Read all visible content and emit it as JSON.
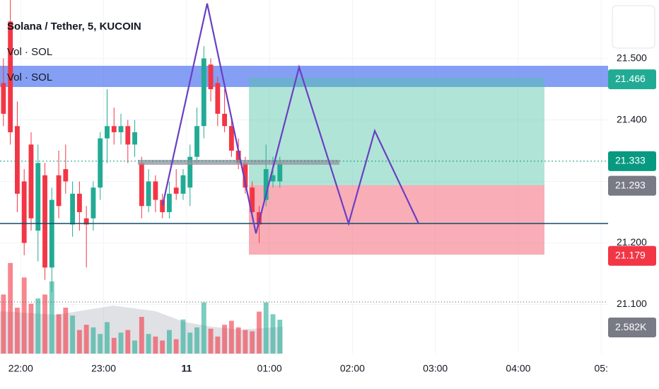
{
  "chart_data": {
    "type": "candlestick",
    "title": "Solana / Tether, 5, KUCOIN",
    "legend": [
      "Vol · SOL",
      "Vol · SOL"
    ],
    "open": [
      21.46,
      21.56,
      21.39,
      21.3,
      21.36,
      21.22,
      21.31,
      21.16,
      21.31,
      21.32,
      21.23,
      21.28,
      21.24,
      21.24,
      21.29,
      21.37,
      21.39,
      21.38,
      21.39,
      21.36,
      21.33,
      21.26,
      21.3,
      21.27,
      21.25,
      21.29,
      21.28,
      21.29,
      21.34,
      21.39,
      21.49,
      21.46,
      21.41,
      21.39,
      21.35,
      21.33,
      21.29,
      21.25,
      21.27,
      21.3,
      21.3
    ],
    "high": [
      21.5,
      21.6,
      21.43,
      21.32,
      21.38,
      21.36,
      21.33,
      21.29,
      21.35,
      21.36,
      21.3,
      21.3,
      21.26,
      21.3,
      21.38,
      21.45,
      21.42,
      21.41,
      21.4,
      21.4,
      21.34,
      21.32,
      21.31,
      21.28,
      21.3,
      21.32,
      21.32,
      21.36,
      21.42,
      21.52,
      21.5,
      21.47,
      21.45,
      21.4,
      21.37,
      21.34,
      21.3,
      21.26,
      21.36,
      21.34,
      21.34
    ],
    "low": [
      21.39,
      21.36,
      21.25,
      21.18,
      21.22,
      21.17,
      21.14,
      21.12,
      21.24,
      21.28,
      21.21,
      21.22,
      21.16,
      21.22,
      21.27,
      21.33,
      21.36,
      21.36,
      21.33,
      21.34,
      21.24,
      21.25,
      21.25,
      21.24,
      21.24,
      21.27,
      21.27,
      21.26,
      21.33,
      21.37,
      21.43,
      21.39,
      21.38,
      21.34,
      21.32,
      21.28,
      21.24,
      21.2,
      21.26,
      21.29,
      21.29
    ],
    "close": [
      21.41,
      21.38,
      21.28,
      21.2,
      21.24,
      21.33,
      21.16,
      21.27,
      21.26,
      21.3,
      21.28,
      21.25,
      21.23,
      21.29,
      21.37,
      21.39,
      21.38,
      21.39,
      21.36,
      21.38,
      21.26,
      21.3,
      21.27,
      21.25,
      21.28,
      21.28,
      21.31,
      21.34,
      21.39,
      21.5,
      21.45,
      21.41,
      21.39,
      21.35,
      21.33,
      21.29,
      21.25,
      21.23,
      21.32,
      21.31,
      21.33
    ],
    "volume": [
      4.5,
      6.9,
      3.5,
      5.8,
      3.8,
      4.2,
      4.5,
      5.5,
      3.0,
      3.5,
      2.9,
      1.8,
      2.2,
      2.0,
      1.5,
      2.4,
      1.2,
      1.6,
      1.8,
      1.0,
      2.8,
      1.5,
      1.3,
      1.0,
      1.8,
      1.1,
      2.6,
      1.6,
      2.0,
      3.9,
      1.9,
      1.3,
      2.2,
      2.5,
      2.0,
      1.8,
      1.7,
      3.2,
      3.9,
      3.0,
      2.582
    ],
    "up_color": "#22ab94",
    "down_color": "#f23645",
    "xlim": [
      -0.5,
      87.5
    ],
    "xticks": [
      {
        "value": 2.5,
        "label": "22:00"
      },
      {
        "value": 14.5,
        "label": "23:00"
      },
      {
        "value": 26.5,
        "label": "11"
      },
      {
        "value": 38.5,
        "label": "01:00"
      },
      {
        "value": 50.5,
        "label": "02:00"
      },
      {
        "value": 62.5,
        "label": "03:00"
      },
      {
        "value": 74.5,
        "label": "04:00"
      },
      {
        "value": 86.5,
        "label": "05:"
      }
    ],
    "ylim": [
      21.02,
      21.595
    ],
    "yticks": [
      {
        "value": 21.1,
        "label": "21.100"
      },
      {
        "value": 21.2,
        "label": "21.200"
      },
      {
        "value": 21.3,
        "label": "21.300"
      },
      {
        "value": 21.4,
        "label": "21.400"
      },
      {
        "value": 21.5,
        "label": "21.500"
      }
    ],
    "vlim": [
      0,
      7
    ],
    "price_labels": [
      {
        "value": 21.466,
        "label": "21.466",
        "color": "#22ab94"
      },
      {
        "value": 21.333,
        "label": "21.333",
        "color": "#089981"
      },
      {
        "value": 21.293,
        "label": "21.293",
        "color": "#787b86"
      },
      {
        "value": 21.179,
        "label": "21.179",
        "color": "#f23645"
      }
    ],
    "volume_label": {
      "value": 2.582,
      "label": "2.582K",
      "color": "#787b86"
    },
    "grid": true
  }
}
